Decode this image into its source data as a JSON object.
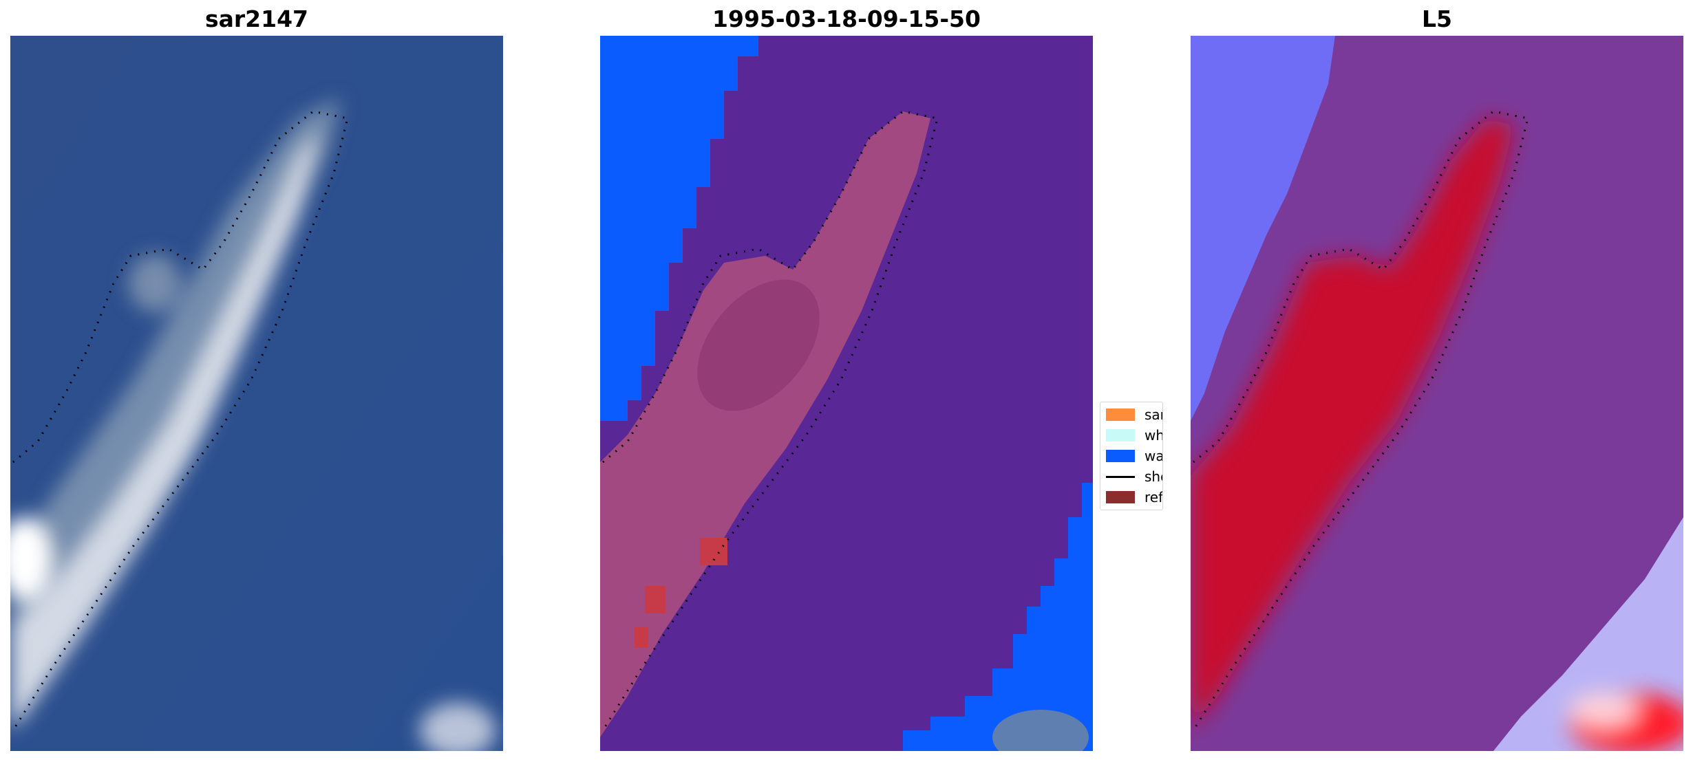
{
  "panels": [
    {
      "title": "sar2147"
    },
    {
      "title": "1995-03-18-09-15-50"
    },
    {
      "title": "L5"
    }
  ],
  "legend": {
    "items": [
      {
        "label": "sand",
        "color": "#ff8c3a",
        "kind": "patch"
      },
      {
        "label": "whitewater",
        "color": "#c8fbf8",
        "kind": "patch"
      },
      {
        "label": "water",
        "color": "#0a5cff",
        "kind": "patch"
      },
      {
        "label": "shoreline",
        "color": "#000000",
        "kind": "line"
      },
      {
        "label": "reference",
        "color": "#8b2d2d",
        "kind": "patch"
      }
    ]
  },
  "colors": {
    "sea": "#2b4f8e",
    "classified_background": "#5a2796",
    "classified_water": "#0a5cff",
    "classified_sand_overlay": "#b0507e",
    "l5_background": "#7a3a9a",
    "l5_high": "#c8102e",
    "l5_low": "#5b5bff"
  }
}
